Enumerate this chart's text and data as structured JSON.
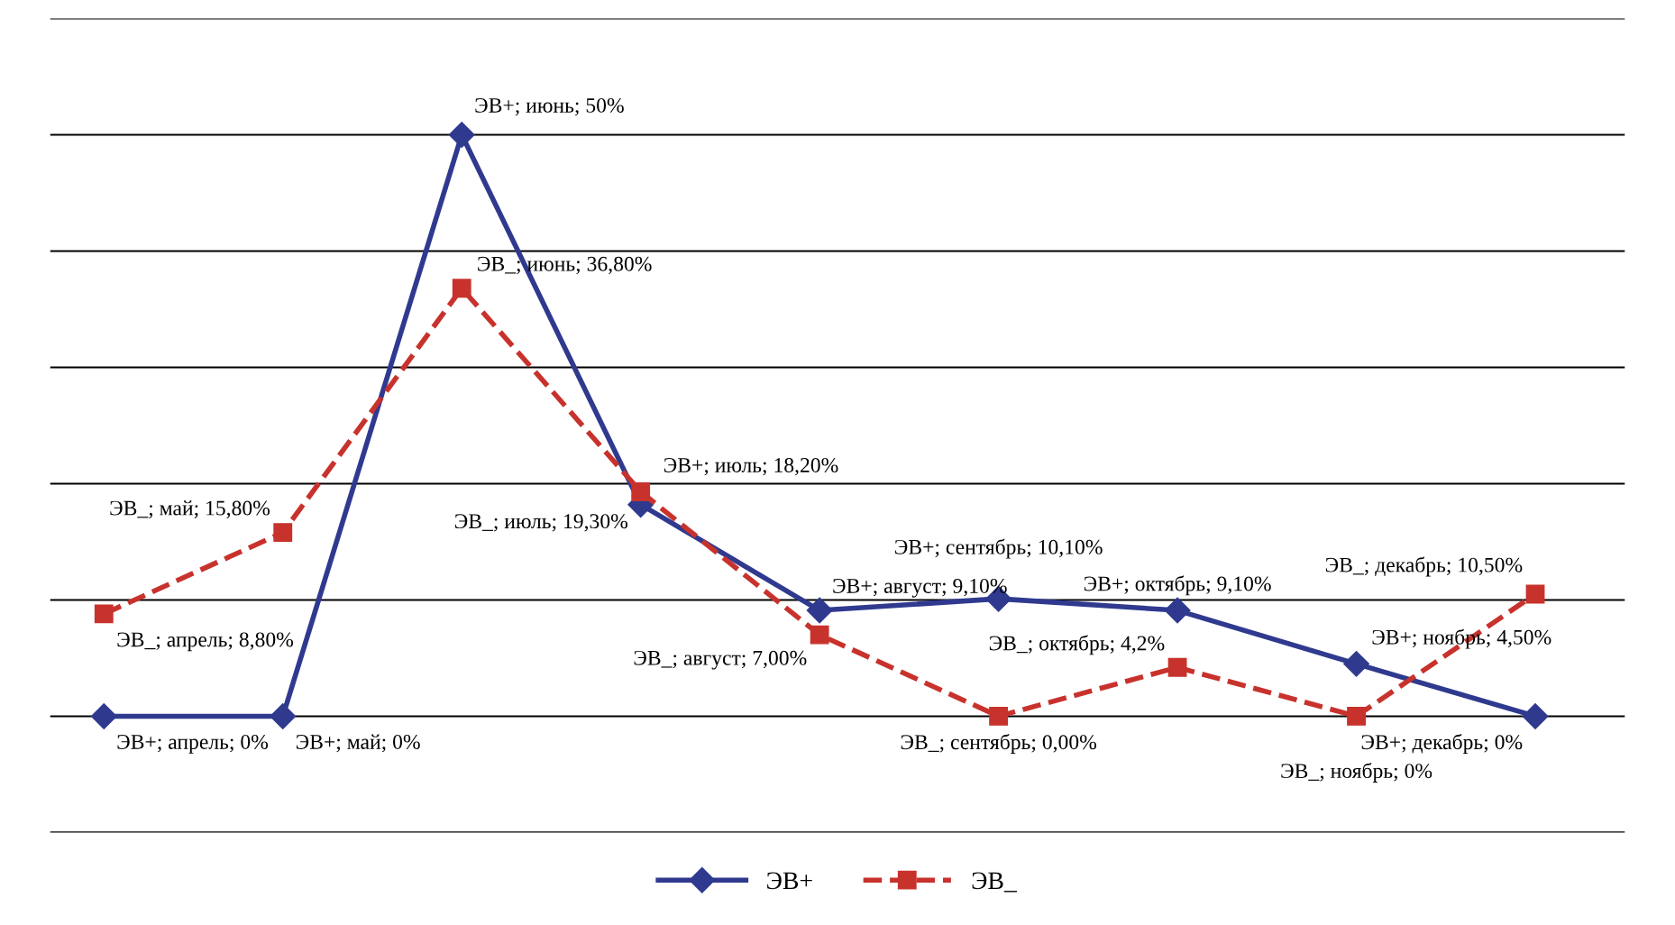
{
  "chart_data": {
    "type": "line",
    "categories": [
      null,
      null,
      null,
      null,
      null,
      null,
      null,
      null,
      null
    ],
    "series": [
      {
        "name": "ЭВ+",
        "color": "#2f3a8f",
        "marker": "diamond",
        "line_style": "solid",
        "values": [
          0,
          0,
          50,
          18.2,
          9.1,
          10.1,
          9.1,
          4.5,
          0
        ],
        "value_labels": [
          "ЭВ+; апрель; 0%",
          "ЭВ+; май; 0%",
          "ЭВ+; июнь; 50%",
          "ЭВ+; июль; 18,20%",
          "ЭВ+; август; 9,10%",
          "ЭВ+; сентябрь; 10,10%",
          "ЭВ+; октябрь; 9,10%",
          "ЭВ+; ноябрь; 4,50%",
          "ЭВ+; декабрь; 0%"
        ]
      },
      {
        "name": "ЭВ_",
        "color": "#c8322d",
        "marker": "square",
        "line_style": "dashed",
        "values": [
          8.8,
          15.8,
          36.8,
          19.3,
          7.0,
          0.0,
          4.2,
          0,
          10.5
        ],
        "value_labels": [
          "ЭВ_; апрель; 8,80%",
          "ЭВ_; май; 15,80%",
          "ЭВ_; июнь; 36,80%",
          "ЭВ_; июль; 19,30%",
          "ЭВ_; август; 7,00%",
          "ЭВ_; сентябрь; 0,00%",
          "ЭВ_; октябрь; 4,2%",
          "ЭВ_; ноябрь; 0%",
          "ЭВ_; декабрь; 10,50%"
        ]
      }
    ],
    "ylim": [
      -10,
      60
    ],
    "yticks": [
      {
        "value": -10,
        "label": null
      },
      {
        "value": 0,
        "label": null
      },
      {
        "value": 10,
        "label": null
      },
      {
        "value": 20,
        "label": null
      },
      {
        "value": 30,
        "label": null
      },
      {
        "value": 40,
        "label": null
      },
      {
        "value": 50,
        "label": null
      },
      {
        "value": 60,
        "label": null
      }
    ],
    "grid": "y",
    "legend": "bottom"
  }
}
